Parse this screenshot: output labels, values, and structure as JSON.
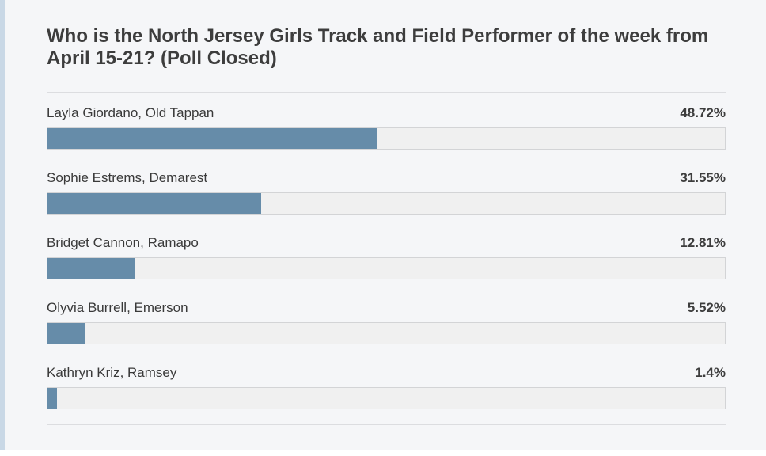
{
  "poll": {
    "title": "Who is the North Jersey Girls Track and Field Performer of the week from April 15-21? (Poll Closed)",
    "bar_color": "#668ca9",
    "options": [
      {
        "label": "Layla Giordano, Old Tappan",
        "percent_text": "48.72%",
        "percent": 48.72
      },
      {
        "label": "Sophie Estrems, Demarest",
        "percent_text": "31.55%",
        "percent": 31.55
      },
      {
        "label": "Bridget Cannon, Ramapo",
        "percent_text": "12.81%",
        "percent": 12.81
      },
      {
        "label": "Olyvia Burrell, Emerson",
        "percent_text": "5.52%",
        "percent": 5.52
      },
      {
        "label": "Kathryn Kriz, Ramsey",
        "percent_text": "1.4%",
        "percent": 1.4
      }
    ]
  }
}
